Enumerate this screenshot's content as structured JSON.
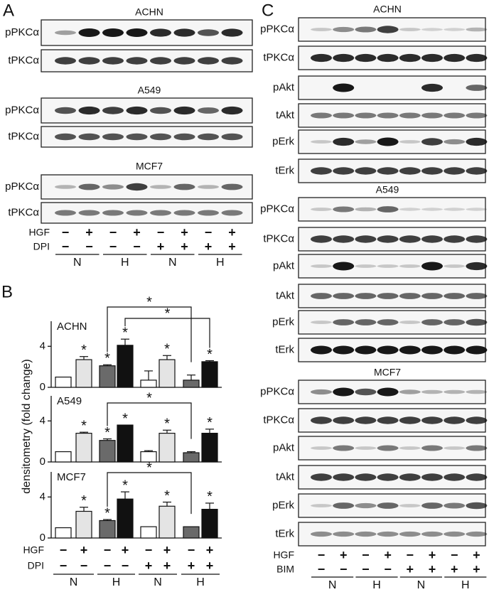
{
  "panel_a": {
    "label": "A",
    "blots": [
      {
        "cell_line": "ACHN",
        "rows": [
          "pPKCα",
          "tPKCα"
        ]
      },
      {
        "cell_line": "A549",
        "rows": [
          "pPKCα",
          "tPKCα"
        ]
      },
      {
        "cell_line": "MCF7",
        "rows": [
          "pPKCα",
          "tPKCα"
        ]
      }
    ],
    "treatments": [
      {
        "name": "HGF",
        "signs": [
          "−",
          "+",
          "−",
          "+",
          "−",
          "+",
          "−",
          "+"
        ]
      },
      {
        "name": "DPI",
        "signs": [
          "−",
          "−",
          "−",
          "−",
          "+",
          "+",
          "+",
          "+"
        ]
      }
    ],
    "groups": [
      "N",
      "H",
      "N",
      "H"
    ]
  },
  "panel_b": {
    "label": "B",
    "y_label": "densitometry (fold change)",
    "treatments": [
      {
        "name": "HGF",
        "signs": [
          "−",
          "+",
          "−",
          "+",
          "−",
          "+",
          "−",
          "+"
        ]
      },
      {
        "name": "DPI",
        "signs": [
          "−",
          "−",
          "−",
          "−",
          "+",
          "+",
          "+",
          "+"
        ]
      }
    ],
    "groups": [
      "N",
      "H",
      "N",
      "H"
    ]
  },
  "chart_data": [
    {
      "type": "bar",
      "title": "ACHN",
      "categories": [
        null,
        null,
        null,
        null,
        null,
        null,
        null,
        null
      ],
      "values": [
        1,
        2.7,
        2.1,
        4.1,
        0.7,
        2.7,
        0.7,
        2.5
      ],
      "errors": [
        0,
        0.3,
        0.1,
        0.6,
        0.9,
        0.4,
        0.5,
        0.1
      ],
      "colors": [
        "#ffffff",
        "#e4e4e4",
        "#6a6a6a",
        "#111111",
        "#ffffff",
        "#e4e4e4",
        "#6a6a6a",
        "#111111"
      ],
      "ylim": [
        0,
        7
      ],
      "yticks": [
        0,
        4
      ],
      "significance": [
        null,
        "*",
        "*",
        "*",
        null,
        "*",
        null,
        "*"
      ],
      "comparisons": [
        {
          "bars": [
            2,
            6
          ],
          "label": "*"
        },
        {
          "bars": [
            3,
            7
          ],
          "label": "*"
        }
      ]
    },
    {
      "type": "bar",
      "title": "A549",
      "categories": [
        null,
        null,
        null,
        null,
        null,
        null,
        null,
        null
      ],
      "values": [
        1,
        2.8,
        2.1,
        3.6,
        1.0,
        2.8,
        0.9,
        2.8
      ],
      "errors": [
        0,
        0.1,
        0.15,
        0,
        0.1,
        0.3,
        0.1,
        0.4
      ],
      "colors": [
        "#ffffff",
        "#e4e4e4",
        "#6a6a6a",
        "#111111",
        "#ffffff",
        "#e4e4e4",
        "#6a6a6a",
        "#111111"
      ],
      "ylim": [
        0,
        7
      ],
      "yticks": [
        0,
        4
      ],
      "significance": [
        null,
        "*",
        "*",
        "*",
        null,
        "*",
        null,
        "*"
      ],
      "comparisons": [
        {
          "bars": [
            2,
            6
          ],
          "label": "*"
        }
      ]
    },
    {
      "type": "bar",
      "title": "MCF7",
      "categories": [
        null,
        null,
        null,
        null,
        null,
        null,
        null,
        null
      ],
      "values": [
        1,
        2.6,
        1.7,
        3.8,
        1.1,
        3.1,
        1.1,
        2.8
      ],
      "errors": [
        0,
        0.4,
        0.1,
        0.7,
        0,
        0.4,
        0,
        0.6
      ],
      "colors": [
        "#ffffff",
        "#e4e4e4",
        "#6a6a6a",
        "#111111",
        "#ffffff",
        "#e4e4e4",
        "#6a6a6a",
        "#111111"
      ],
      "ylim": [
        0,
        7
      ],
      "yticks": [
        0,
        4
      ],
      "significance": [
        null,
        "*",
        "*",
        "*",
        null,
        "*",
        null,
        "*"
      ],
      "comparisons": [
        {
          "bars": [
            2,
            6
          ],
          "label": "*"
        }
      ]
    }
  ],
  "panel_c": {
    "label": "C",
    "blots": [
      {
        "cell_line": "ACHN",
        "rows": [
          "pPKCα",
          "tPKCα",
          "pAkt",
          "tAkt",
          "pErk",
          "tErk"
        ]
      },
      {
        "cell_line": "A549",
        "rows": [
          "pPKCα",
          "tPKCα",
          "pAkt",
          "tAkt",
          "pErk",
          "tErk"
        ]
      },
      {
        "cell_line": "MCF7",
        "rows": [
          "pPKCα",
          "tPKCα",
          "pAkt",
          "tAkt",
          "pErk",
          "tErk"
        ]
      }
    ],
    "treatments": [
      {
        "name": "HGF",
        "signs": [
          "−",
          "+",
          "−",
          "+",
          "−",
          "+",
          "−",
          "+"
        ]
      },
      {
        "name": "BIM",
        "signs": [
          "−",
          "−",
          "−",
          "−",
          "+",
          "+",
          "+",
          "+"
        ]
      }
    ],
    "groups": [
      "N",
      "H",
      "N",
      "H"
    ]
  }
}
